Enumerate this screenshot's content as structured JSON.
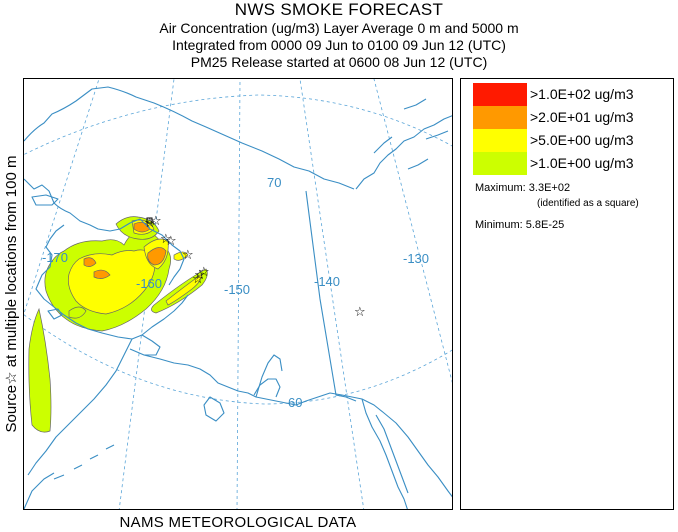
{
  "header": {
    "title": "NWS SMOKE FORECAST",
    "line2": "Air Concentration (ug/m3) Layer Average    0 m and  5000 m",
    "line3": "Integrated from 0000 09 Jun to 0100 09 Jun 12 (UTC)",
    "line4": "PM25 Release started at 0600 08 Jun 12 (UTC)"
  },
  "side_label": "Source☆ at multiple locations  from  100 m",
  "footer": "NAMS METEOROLOGICAL DATA",
  "map": {
    "grid_labels": {
      "lat70": "70",
      "lat60": "60",
      "lon170": "-170",
      "lon160": "-160",
      "lon150": "-150",
      "lon140": "-140",
      "lon130": "-130"
    },
    "colors": {
      "coast": "#3a8ec4",
      "grid": "#5aa5d8",
      "level_100": "#ff1a00",
      "level_20": "#ff9900",
      "level_5": "#ffff00",
      "level_1": "#ccff00"
    }
  },
  "legend": {
    "items": [
      {
        "label": ">1.0E+02 ug/m3",
        "color": "#ff1a00"
      },
      {
        "label": ">2.0E+01 ug/m3",
        "color": "#ff9900"
      },
      {
        "label": ">5.0E+00 ug/m3",
        "color": "#ffff00"
      },
      {
        "label": ">1.0E+00 ug/m3",
        "color": "#ccff00"
      }
    ],
    "maximum": "Maximum: 3.3E+02",
    "maximum_note": "(identified as a square)",
    "minimum": "Minimum: 5.8E-25"
  }
}
